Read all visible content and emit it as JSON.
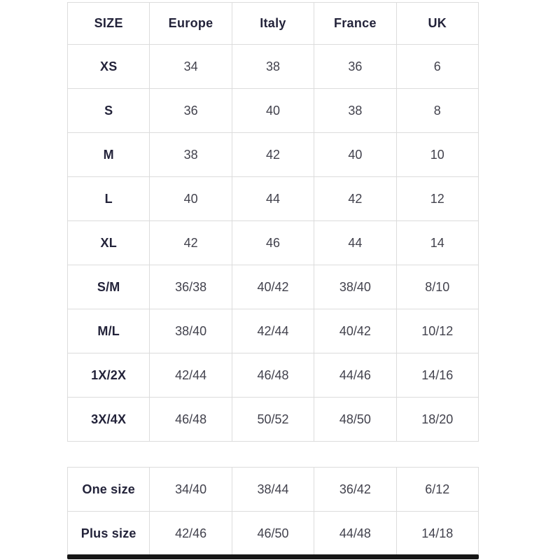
{
  "colors": {
    "background": "#ffffff",
    "cell_border": "#dcdcdc",
    "header_text": "#23233a",
    "value_text": "#42424d",
    "scrollbar": "#161616"
  },
  "chart_data": [
    {
      "type": "table",
      "title": "",
      "columns": [
        "SIZE",
        "Europe",
        "Italy",
        "France",
        "UK"
      ],
      "rows": [
        [
          "XS",
          "34",
          "38",
          "36",
          "6"
        ],
        [
          "S",
          "36",
          "40",
          "38",
          "8"
        ],
        [
          "M",
          "38",
          "42",
          "40",
          "10"
        ],
        [
          "L",
          "40",
          "44",
          "42",
          "12"
        ],
        [
          "XL",
          "42",
          "46",
          "44",
          "14"
        ],
        [
          "S/M",
          "36/38",
          "40/42",
          "38/40",
          "8/10"
        ],
        [
          "M/L",
          "38/40",
          "42/44",
          "40/42",
          "10/12"
        ],
        [
          "1X/2X",
          "42/44",
          "46/48",
          "44/46",
          "14/16"
        ],
        [
          "3X/4X",
          "46/48",
          "50/52",
          "48/50",
          "18/20"
        ]
      ],
      "layout": {
        "grid": true,
        "header_row": true
      }
    },
    {
      "type": "table",
      "title": "",
      "rows": [
        [
          "One size",
          "34/40",
          "38/44",
          "36/42",
          "6/12"
        ],
        [
          "Plus size",
          "42/46",
          "46/50",
          "44/48",
          "14/18"
        ]
      ],
      "layout": {
        "grid": true,
        "header_row": false
      }
    }
  ]
}
